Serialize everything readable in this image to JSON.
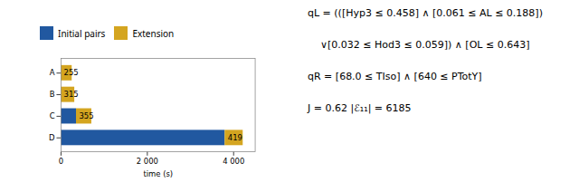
{
  "chart_data": {
    "type": "bar",
    "orientation": "horizontal",
    "stacked": true,
    "categories": [
      "A",
      "B",
      "C",
      "D"
    ],
    "series": [
      {
        "name": "Initial pairs",
        "color": "#2158a0",
        "values": [
          0,
          0,
          355,
          3800
        ]
      },
      {
        "name": "Extension",
        "color": "#d4a520",
        "values": [
          255,
          315,
          355,
          419
        ],
        "data_labels": true
      }
    ],
    "xlabel": "time (s)",
    "xlim": [
      0,
      4500
    ],
    "xticks": [
      0,
      {
        "value": 2000,
        "label": "2 000"
      },
      {
        "value": 4000,
        "label": "4 000"
      }
    ],
    "legend": "upper left",
    "grid": false,
    "annotations": [
      "qL = (([Hyp3 ≤ 0.458] ∧ [0.061 ≤ AL ≤ 0.188])",
      "∨[0.032 ≤ Hod3 ≤ 0.059]) ∧ [OL ≤ 0.643]",
      "qR = [68.0 ≤ TIso] ∧ [640 ≤ PTotY]",
      "J = 0.62    |ℰ₁₁| = 6185"
    ]
  }
}
